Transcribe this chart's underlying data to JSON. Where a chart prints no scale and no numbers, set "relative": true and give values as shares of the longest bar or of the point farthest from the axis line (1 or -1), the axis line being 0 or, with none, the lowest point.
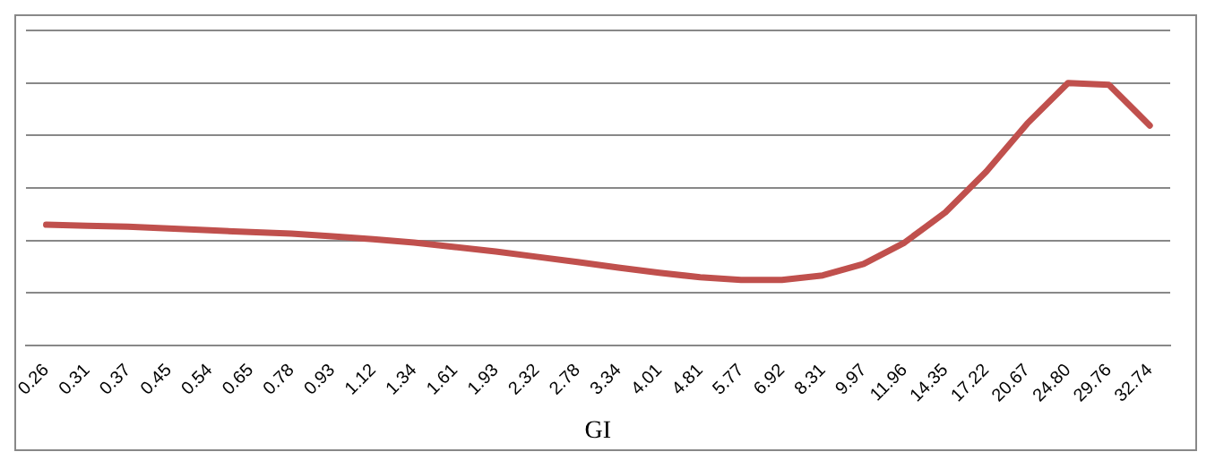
{
  "chart_data": {
    "type": "line",
    "xlabel": "GI",
    "relative": true,
    "grid": "y",
    "legend": false,
    "marker": "none",
    "line_style": "solid",
    "categories": [
      "0.26",
      "0.31",
      "0.37",
      "0.45",
      "0.54",
      "0.65",
      "0.78",
      "0.93",
      "1.12",
      "1.34",
      "1.61",
      "1.93",
      "2.32",
      "2.78",
      "3.34",
      "4.01",
      "4.81",
      "5.77",
      "6.92",
      "8.31",
      "9.97",
      "11.96",
      "14.35",
      "17.22",
      "20.67",
      "24.80",
      "29.76",
      "32.74"
    ],
    "series": [
      {
        "color": "#c0504d",
        "values": [
          0.46,
          0.456,
          0.453,
          0.446,
          0.439,
          0.432,
          0.426,
          0.416,
          0.405,
          0.392,
          0.375,
          0.358,
          0.338,
          0.318,
          0.297,
          0.277,
          0.26,
          0.25,
          0.25,
          0.267,
          0.311,
          0.392,
          0.507,
          0.662,
          0.845,
          1,
          0.993,
          0.838
        ]
      }
    ]
  }
}
